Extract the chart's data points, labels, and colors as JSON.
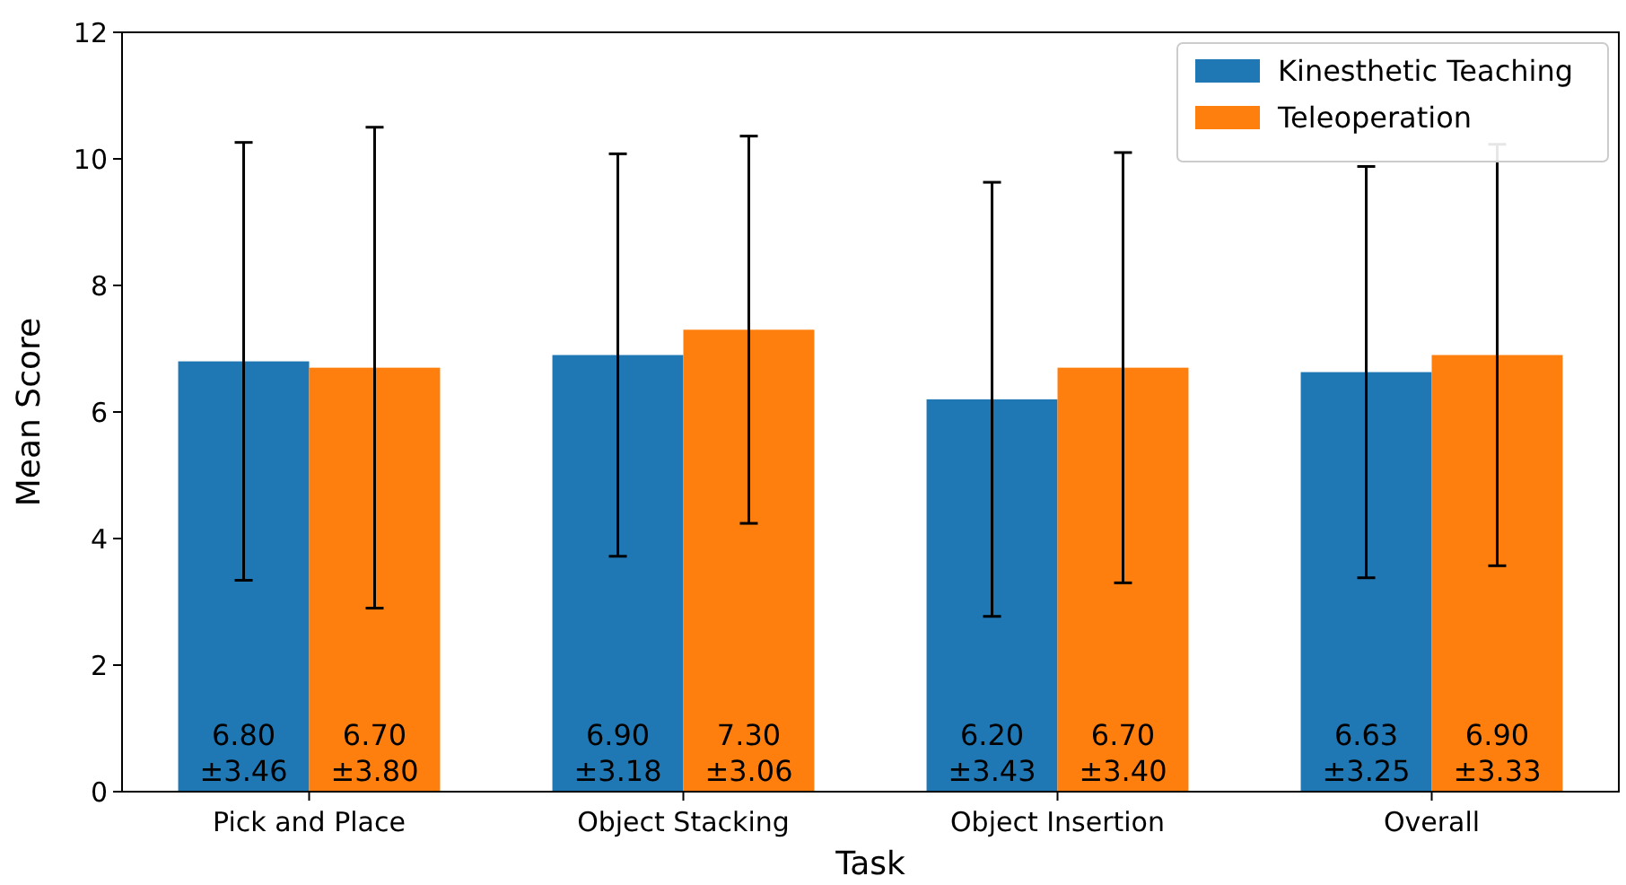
{
  "chart_data": {
    "type": "bar",
    "xlabel": "Task",
    "ylabel": "Mean Score",
    "categories": [
      "Pick and Place",
      "Object Stacking",
      "Object Insertion",
      "Overall"
    ],
    "series": [
      {
        "name": "Kinesthetic Teaching",
        "color": "#1f77b4",
        "values": [
          6.8,
          6.9,
          6.2,
          6.63
        ],
        "errors": [
          3.46,
          3.18,
          3.43,
          3.25
        ],
        "value_labels": [
          "6.80\n±3.46",
          "6.90\n±3.18",
          "6.20\n±3.43",
          "6.63\n±3.25"
        ]
      },
      {
        "name": "Teleoperation",
        "color": "#ff7f0e",
        "values": [
          6.7,
          7.3,
          6.7,
          6.9
        ],
        "errors": [
          3.8,
          3.06,
          3.4,
          3.33
        ],
        "value_labels": [
          "6.70\n±3.80",
          "7.30\n±3.06",
          "6.70\n±3.40",
          "6.90\n±3.33"
        ]
      }
    ],
    "ylim": [
      0,
      12
    ],
    "yticks": [
      0,
      2,
      4,
      6,
      8,
      10,
      12
    ],
    "legend": "top right"
  }
}
